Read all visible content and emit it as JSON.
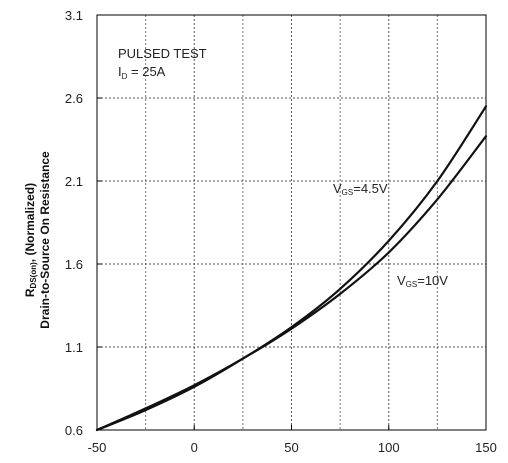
{
  "chart_data": {
    "type": "line",
    "title": "",
    "xlabel": "",
    "ylabel_line1": "R",
    "ylabel_line1_sub": "DS(on)",
    "ylabel_line1_rest": ", (Normalized)",
    "ylabel_line2": "Drain-to-Source On Resistance",
    "xlim": [
      -50,
      150
    ],
    "ylim": [
      0.6,
      3.1
    ],
    "x_ticks": [
      -50,
      0,
      50,
      100,
      150
    ],
    "x_tick_labels": [
      "-50",
      "0",
      "50",
      "100",
      "150"
    ],
    "y_ticks": [
      0.6,
      1.1,
      1.6,
      2.1,
      2.6,
      3.1
    ],
    "y_tick_labels": [
      "0.6",
      "1.1",
      "1.6",
      "2.1",
      "2.6",
      "3.1"
    ],
    "grid": true,
    "grid_style": "dashed",
    "annotations": {
      "test_line1": "PULSED TEST",
      "test_line2_prefix": "I",
      "test_line2_sub": "D",
      "test_line2_rest": " = 25A"
    },
    "series": [
      {
        "name": "Vgs=4.5V",
        "x": [
          -50,
          -25,
          0,
          25,
          50,
          75,
          100,
          125,
          150
        ],
        "y": [
          0.6,
          0.72,
          0.86,
          1.03,
          1.22,
          1.45,
          1.74,
          2.1,
          2.55
        ]
      },
      {
        "name": "Vgs=10V",
        "x": [
          -50,
          -25,
          0,
          25,
          50,
          75,
          100,
          125,
          150
        ],
        "y": [
          0.6,
          0.73,
          0.87,
          1.03,
          1.21,
          1.42,
          1.67,
          1.99,
          2.37
        ]
      }
    ],
    "series_label_prefix": "V",
    "series_label_sub": "GS",
    "series_label_values": [
      "=4.5V",
      "=10V"
    ]
  }
}
